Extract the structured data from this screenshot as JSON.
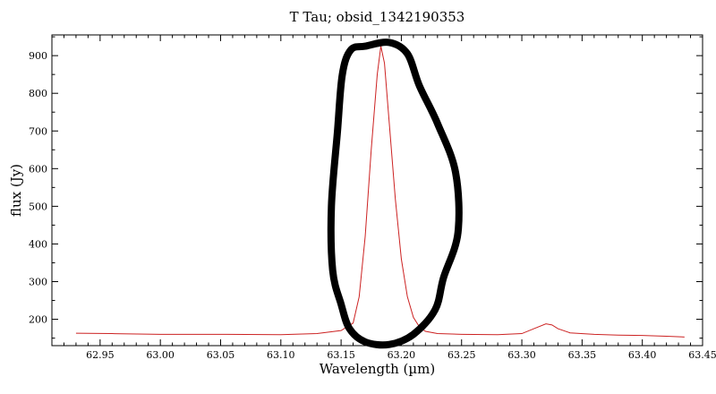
{
  "chart_data": {
    "type": "line",
    "title": "T Tau; obsid_1342190353",
    "xlabel": "Wavelength (µm)",
    "ylabel": "flux (Jy)",
    "xlim": [
      62.91,
      63.45
    ],
    "ylim": [
      130,
      955
    ],
    "x_ticks": [
      "62.95",
      "63.00",
      "63.05",
      "63.10",
      "63.15",
      "63.20",
      "63.25",
      "63.30",
      "63.35",
      "63.40",
      "63.45"
    ],
    "y_ticks": [
      "200",
      "300",
      "400",
      "500",
      "600",
      "700",
      "800",
      "900"
    ],
    "grid": false,
    "series": [
      {
        "color": "#cc2222",
        "x": [
          62.93,
          62.96,
          63.0,
          63.05,
          63.1,
          63.13,
          63.15,
          63.16,
          63.165,
          63.17,
          63.175,
          63.18,
          63.183,
          63.186,
          63.19,
          63.195,
          63.2,
          63.205,
          63.21,
          63.215,
          63.22,
          63.23,
          63.25,
          63.28,
          63.3,
          63.31,
          63.32,
          63.325,
          63.33,
          63.34,
          63.36,
          63.38,
          63.4,
          63.42,
          63.435
        ],
        "y": [
          163,
          162,
          160,
          160,
          159,
          162,
          170,
          190,
          260,
          420,
          650,
          850,
          925,
          880,
          720,
          520,
          360,
          260,
          205,
          180,
          168,
          162,
          160,
          159,
          162,
          175,
          188,
          185,
          175,
          164,
          160,
          158,
          157,
          155,
          153
        ]
      }
    ]
  },
  "annotation": {
    "type": "hand-drawn-ellipse",
    "color": "#000000",
    "points": [
      [
        63.17,
        925
      ],
      [
        63.19,
        935
      ],
      [
        63.205,
        905
      ],
      [
        63.215,
        820
      ],
      [
        63.23,
        720
      ],
      [
        63.245,
        590
      ],
      [
        63.247,
        430
      ],
      [
        63.235,
        310
      ],
      [
        63.228,
        225
      ],
      [
        63.21,
        160
      ],
      [
        63.19,
        133
      ],
      [
        63.17,
        140
      ],
      [
        63.157,
        175
      ],
      [
        63.15,
        240
      ],
      [
        63.143,
        330
      ],
      [
        63.142,
        500
      ],
      [
        63.147,
        700
      ],
      [
        63.151,
        850
      ],
      [
        63.158,
        915
      ],
      [
        63.17,
        925
      ]
    ]
  }
}
